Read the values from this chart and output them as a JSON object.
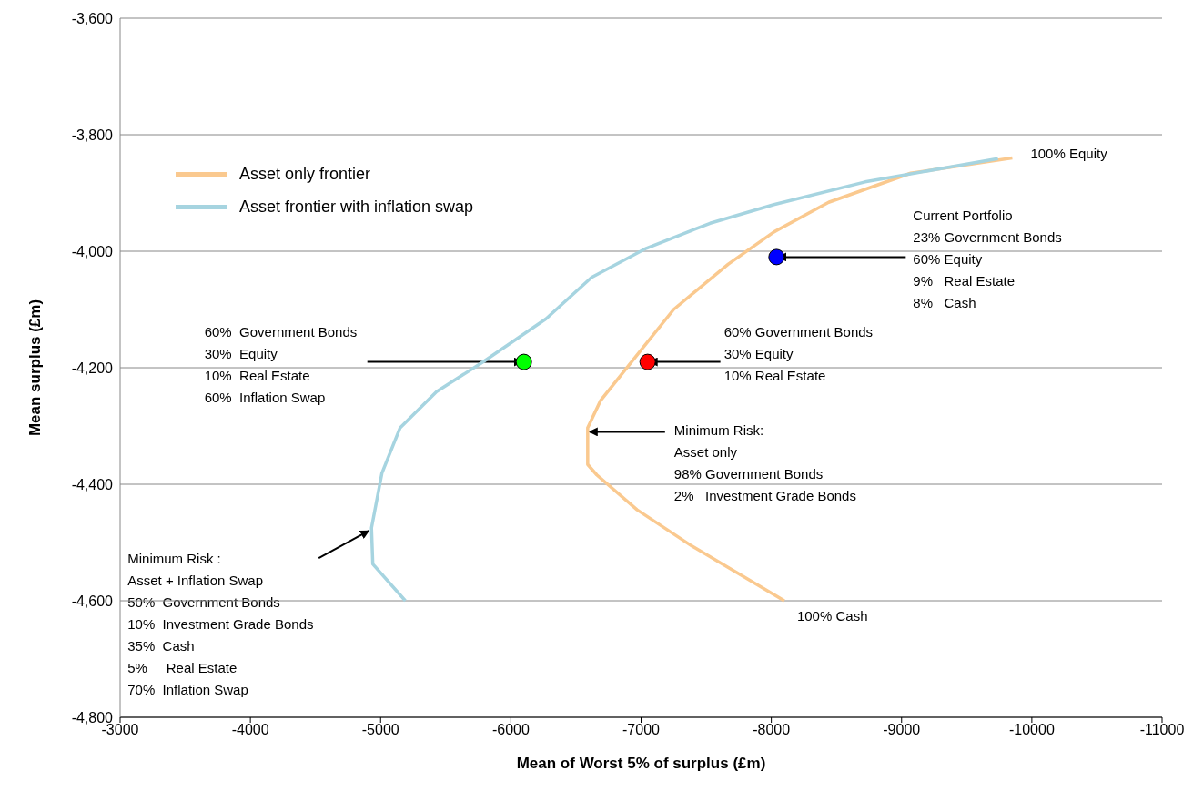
{
  "chart_data": {
    "type": "line",
    "xlabel": "Mean of Worst 5% of surplus (£m)",
    "ylabel": "Mean surplus (£m)",
    "xlim": [
      -3000,
      -11000
    ],
    "xticks": [
      -3000,
      -4000,
      -5000,
      -6000,
      -7000,
      -8000,
      -9000,
      -10000,
      -11000
    ],
    "ylim": [
      -4800,
      -3600
    ],
    "yticks": [
      {
        "value": -4800,
        "label": "-4,800"
      },
      {
        "value": -4600,
        "label": "-4,600"
      },
      {
        "value": -4400,
        "label": "-4,400"
      },
      {
        "value": -4200,
        "label": "-4,200"
      },
      {
        "value": -4000,
        "label": "-4,000"
      },
      {
        "value": -3800,
        "label": "-3,800"
      },
      {
        "value": -3600,
        "label": "-3,600"
      }
    ],
    "grid": "y",
    "legend": "top left",
    "marker": "none",
    "line_style": "solid",
    "series": [
      {
        "name": "Asset only frontier",
        "color": "#fac98f",
        "x": [
          -9850,
          -9070,
          -8440,
          -8020,
          -7670,
          -7250,
          -6970,
          -6690,
          -6590,
          -6590,
          -6660,
          -6970,
          -7390,
          -8100
        ],
        "values": [
          -3840,
          -3866,
          -3916,
          -3967,
          -4022,
          -4100,
          -4178,
          -4256,
          -4303,
          -4366,
          -4384,
          -4444,
          -4506,
          -4600
        ]
      },
      {
        "name": "Asset frontier with inflation swap",
        "color": "#a6d4e0",
        "x": [
          -9740,
          -8720,
          -8020,
          -7530,
          -7040,
          -6620,
          -6270,
          -5780,
          -5430,
          -5150,
          -5010,
          -4930,
          -4940,
          -5190
        ],
        "values": [
          -3841,
          -3881,
          -3920,
          -3952,
          -3995,
          -4045,
          -4116,
          -4191,
          -4241,
          -4303,
          -4381,
          -4475,
          -4537,
          -4600
        ]
      },
      {
        "type": "scatter",
        "marker": "circle",
        "x": [
          -8040,
          -7050,
          -6100
        ],
        "values": [
          -4010,
          -4190,
          -4190
        ],
        "colors": [
          "#0000ff",
          "#ff0000",
          "#00ff00"
        ]
      }
    ],
    "annotations": [
      {
        "text": "100% Equity",
        "x": -9850,
        "y": -3840
      },
      {
        "text": "100% Cash",
        "x": -8100,
        "y": -4600
      },
      {
        "text": "Current Portfolio\n23% Government Bonds\n60% Equity\n9%   Real Estate\n8%   Cash",
        "x": -8040,
        "y": -4010
      },
      {
        "text": "60% Government Bonds\n30% Equity\n10% Real Estate",
        "x": -7050,
        "y": -4190
      },
      {
        "text": "60%  Government Bonds\n30%  Equity\n10%  Real Estate\n60%  Inflation Swap",
        "x": -6100,
        "y": -4190
      },
      {
        "text": "Minimum Risk:\nAsset only\n98% Government Bonds\n2%   Investment Grade Bonds",
        "x": -6590,
        "y": -4310
      },
      {
        "text": "Minimum Risk :\nAsset + Inflation Swap\n50%  Government Bonds\n10%  Investment Grade Bonds\n35%  Cash\n5%     Real Estate\n70%  Inflation Swap",
        "x": -4930,
        "y": -4480
      }
    ]
  }
}
